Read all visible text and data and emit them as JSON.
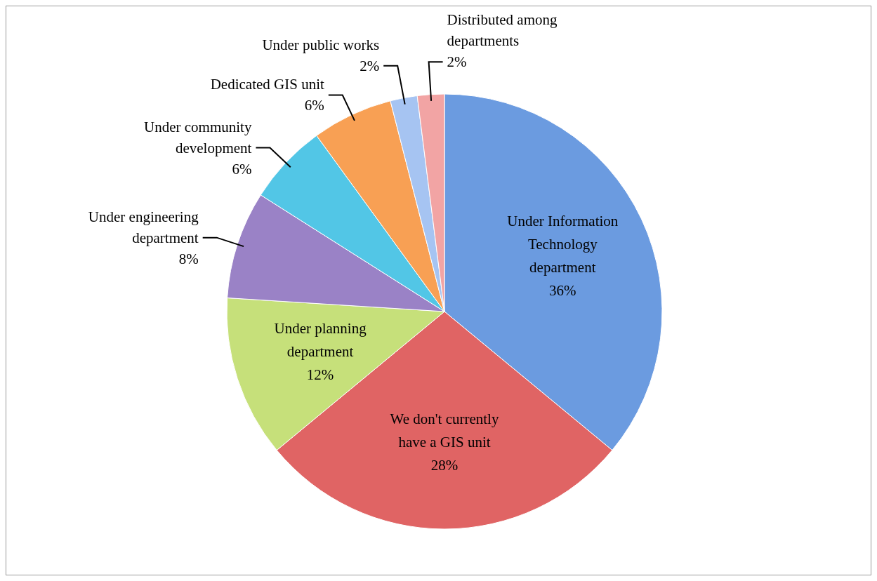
{
  "chart_data": {
    "type": "pie",
    "categories": [
      "Under Information Technology department",
      "We don't currently have a GIS unit",
      "Under planning department",
      "Under engineering department",
      "Under community development",
      "Dedicated GIS unit",
      "Under public works",
      "Distributed among departments"
    ],
    "values": [
      36,
      28,
      12,
      8,
      6,
      6,
      2,
      2
    ],
    "value_labels": [
      "36%",
      "28%",
      "12%",
      "8%",
      "6%",
      "6%",
      "2%",
      "2%"
    ],
    "colors": [
      "#6b9be0",
      "#e06464",
      "#c6e07a",
      "#9a82c6",
      "#52c6e6",
      "#f8a054",
      "#a6c4f2",
      "#f2a4a4"
    ]
  }
}
